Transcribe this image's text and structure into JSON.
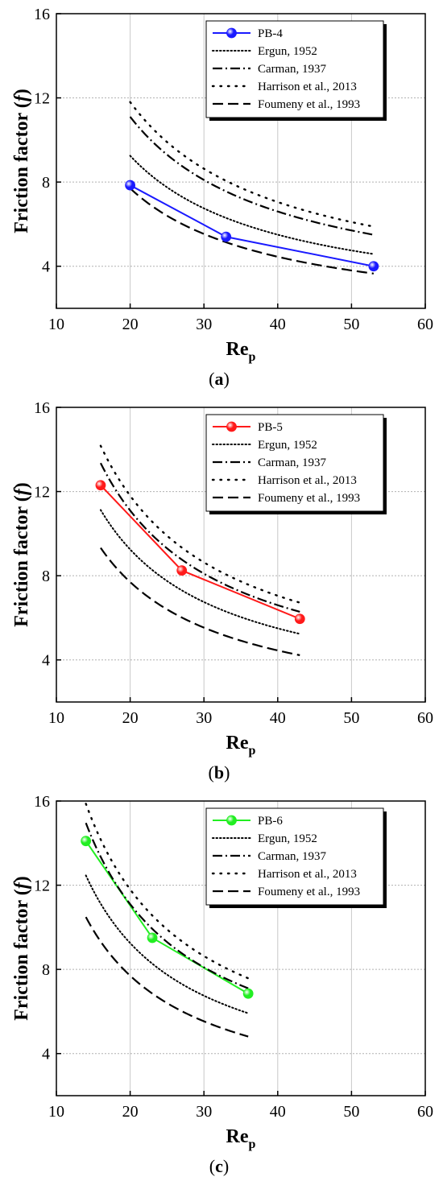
{
  "chart_data": [
    {
      "type": "line",
      "panel_label_prefix": "(",
      "panel_letter": "a",
      "panel_label_suffix": ")",
      "xlabel_main": "Re",
      "xlabel_sub": "p",
      "ylabel_main": "Friction factor (",
      "ylabel_italic": "f",
      "ylabel_end": ")",
      "xlim": [
        10,
        60
      ],
      "ylim": [
        2,
        16
      ],
      "x_ticks": [
        10,
        20,
        30,
        40,
        50,
        60
      ],
      "y_ticks": [
        4,
        8,
        12,
        16
      ],
      "grid": true,
      "legend_position": "top-right",
      "series": [
        {
          "name": "PB-4",
          "style": "marker-line",
          "color": "#1a1aff",
          "x": [
            20,
            33,
            53
          ],
          "y": [
            7.85,
            5.4,
            4.0
          ]
        },
        {
          "name": "Ergun, 1952",
          "style": "dotted",
          "color": "#000000",
          "formula": [
            150,
            1.75
          ],
          "xrange": [
            20,
            53
          ]
        },
        {
          "name": "Carman, 1937",
          "style": "dashdot",
          "color": "#000000",
          "formula": [
            180,
            2.1
          ],
          "xrange": [
            20,
            53
          ]
        },
        {
          "name": "Harrison et al., 2013",
          "style": "sparse-dot",
          "color": "#000000",
          "formula": [
            190,
            2.3
          ],
          "xrange": [
            20,
            53
          ]
        },
        {
          "name": "Foumeny et al., 1993",
          "style": "dashed",
          "color": "#000000",
          "formula": [
            130,
            1.2
          ],
          "xrange": [
            20,
            53
          ]
        }
      ]
    },
    {
      "type": "line",
      "panel_label_prefix": "(",
      "panel_letter": "b",
      "panel_label_suffix": ")",
      "xlabel_main": "Re",
      "xlabel_sub": "p",
      "ylabel_main": "Friction factor (",
      "ylabel_italic": "f",
      "ylabel_end": ")",
      "xlim": [
        10,
        60
      ],
      "ylim": [
        2,
        16
      ],
      "x_ticks": [
        10,
        20,
        30,
        40,
        50,
        60
      ],
      "y_ticks": [
        4,
        8,
        12,
        16
      ],
      "grid": true,
      "legend_position": "top-right",
      "series": [
        {
          "name": "PB-5",
          "style": "marker-line",
          "color": "#ff1a1a",
          "x": [
            16,
            27,
            43
          ],
          "y": [
            12.3,
            8.25,
            5.95
          ]
        },
        {
          "name": "Ergun, 1952",
          "style": "dotted",
          "color": "#000000",
          "formula": [
            150,
            1.75
          ],
          "xrange": [
            16,
            43
          ]
        },
        {
          "name": "Carman, 1937",
          "style": "dashdot",
          "color": "#000000",
          "formula": [
            180,
            2.1
          ],
          "xrange": [
            16,
            43
          ]
        },
        {
          "name": "Harrison et al., 2013",
          "style": "sparse-dot",
          "color": "#000000",
          "formula": [
            190,
            2.3
          ],
          "xrange": [
            16,
            43
          ]
        },
        {
          "name": "Foumeny et al., 1993",
          "style": "dashed",
          "color": "#000000",
          "formula": [
            130,
            1.2
          ],
          "xrange": [
            16,
            43
          ]
        }
      ]
    },
    {
      "type": "line",
      "panel_label_prefix": "(",
      "panel_letter": "c",
      "panel_label_suffix": ")",
      "xlabel_main": "Re",
      "xlabel_sub": "p",
      "ylabel_main": "Friction factor (",
      "ylabel_italic": "f",
      "ylabel_end": ")",
      "xlim": [
        10,
        60
      ],
      "ylim": [
        2,
        16
      ],
      "x_ticks": [
        10,
        20,
        30,
        40,
        50,
        60
      ],
      "y_ticks": [
        4,
        8,
        12,
        16
      ],
      "grid": true,
      "legend_position": "top-right",
      "series": [
        {
          "name": "PB-6",
          "style": "marker-line",
          "color": "#22ee22",
          "x": [
            14,
            23,
            36
          ],
          "y": [
            14.1,
            9.5,
            6.85
          ]
        },
        {
          "name": "Ergun, 1952",
          "style": "dotted",
          "color": "#000000",
          "formula": [
            150,
            1.75
          ],
          "xrange": [
            14,
            36
          ]
        },
        {
          "name": "Carman, 1937",
          "style": "dashdot",
          "color": "#000000",
          "formula": [
            180,
            2.1
          ],
          "xrange": [
            14,
            36
          ]
        },
        {
          "name": "Harrison et al., 2013",
          "style": "sparse-dot",
          "color": "#000000",
          "formula": [
            190,
            2.3
          ],
          "xrange": [
            14,
            36
          ]
        },
        {
          "name": "Foumeny et al., 1993",
          "style": "dashed",
          "color": "#000000",
          "formula": [
            130,
            1.2
          ],
          "xrange": [
            14,
            36
          ]
        }
      ]
    }
  ]
}
